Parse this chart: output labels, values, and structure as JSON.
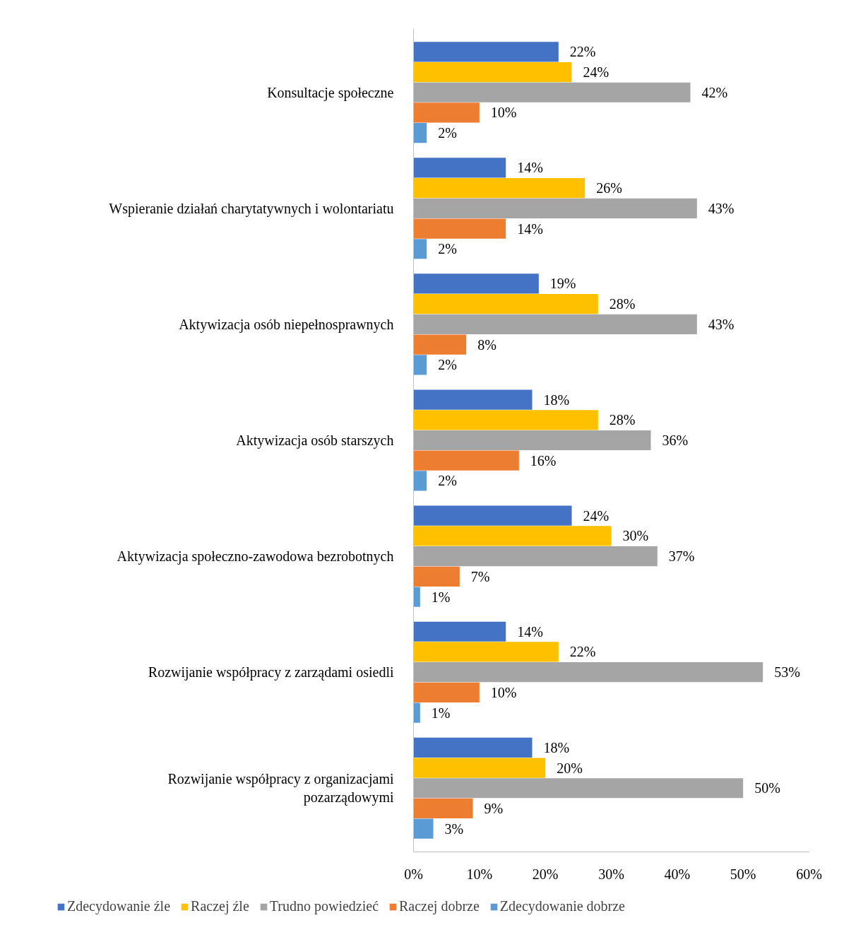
{
  "chart_data": {
    "type": "bar",
    "orientation": "horizontal",
    "categories": [
      "Konsultacje społeczne",
      "Wspieranie działań charytatywnych i wolontariatu",
      "Aktywizacja osób niepełnosprawnych",
      "Aktywizacja osób starszych",
      "Aktywizacja społeczno-zawodowa bezrobotnych",
      "Rozwijanie współpracy z zarządami osiedli",
      "Rozwijanie współpracy z organizacjami pozarządowymi"
    ],
    "series": [
      {
        "name": "Zdecydowanie źle",
        "color": "#4472c4",
        "values": [
          22,
          14,
          19,
          18,
          24,
          14,
          18
        ],
        "value_labels": [
          "22%",
          "14%",
          "19%",
          "18%",
          "24%",
          "14%",
          "18%"
        ]
      },
      {
        "name": "Raczej źle",
        "color": "#ffc000",
        "values": [
          24,
          26,
          28,
          28,
          30,
          22,
          20
        ],
        "value_labels": [
          "24%",
          "26%",
          "28%",
          "28%",
          "30%",
          "22%",
          "20%"
        ]
      },
      {
        "name": "Trudno powiedzieć",
        "color": "#a5a5a5",
        "values": [
          42,
          43,
          43,
          36,
          37,
          53,
          50
        ],
        "value_labels": [
          "42%",
          "43%",
          "43%",
          "36%",
          "37%",
          "53%",
          "50%"
        ]
      },
      {
        "name": "Raczej dobrze",
        "color": "#ed7d31",
        "values": [
          10,
          14,
          8,
          16,
          7,
          10,
          9
        ],
        "value_labels": [
          "10%",
          "14%",
          "8%",
          "16%",
          "7%",
          "10%",
          "9%"
        ]
      },
      {
        "name": "Zdecydowanie dobrze",
        "color": "#5b9bd5",
        "values": [
          2,
          2,
          2,
          2,
          1,
          1,
          3
        ],
        "value_labels": [
          "2%",
          "2%",
          "2%",
          "2%",
          "1%",
          "1%",
          "3%"
        ]
      }
    ],
    "xlim": [
      0,
      60
    ],
    "xticks": [
      {
        "value": 0,
        "label": "0%"
      },
      {
        "value": 10,
        "label": "10%"
      },
      {
        "value": 20,
        "label": "20%"
      },
      {
        "value": 30,
        "label": "30%"
      },
      {
        "value": 40,
        "label": "40%"
      },
      {
        "value": 50,
        "label": "50%"
      },
      {
        "value": 60,
        "label": "60%"
      }
    ],
    "grid": false,
    "legend": "bottom"
  }
}
